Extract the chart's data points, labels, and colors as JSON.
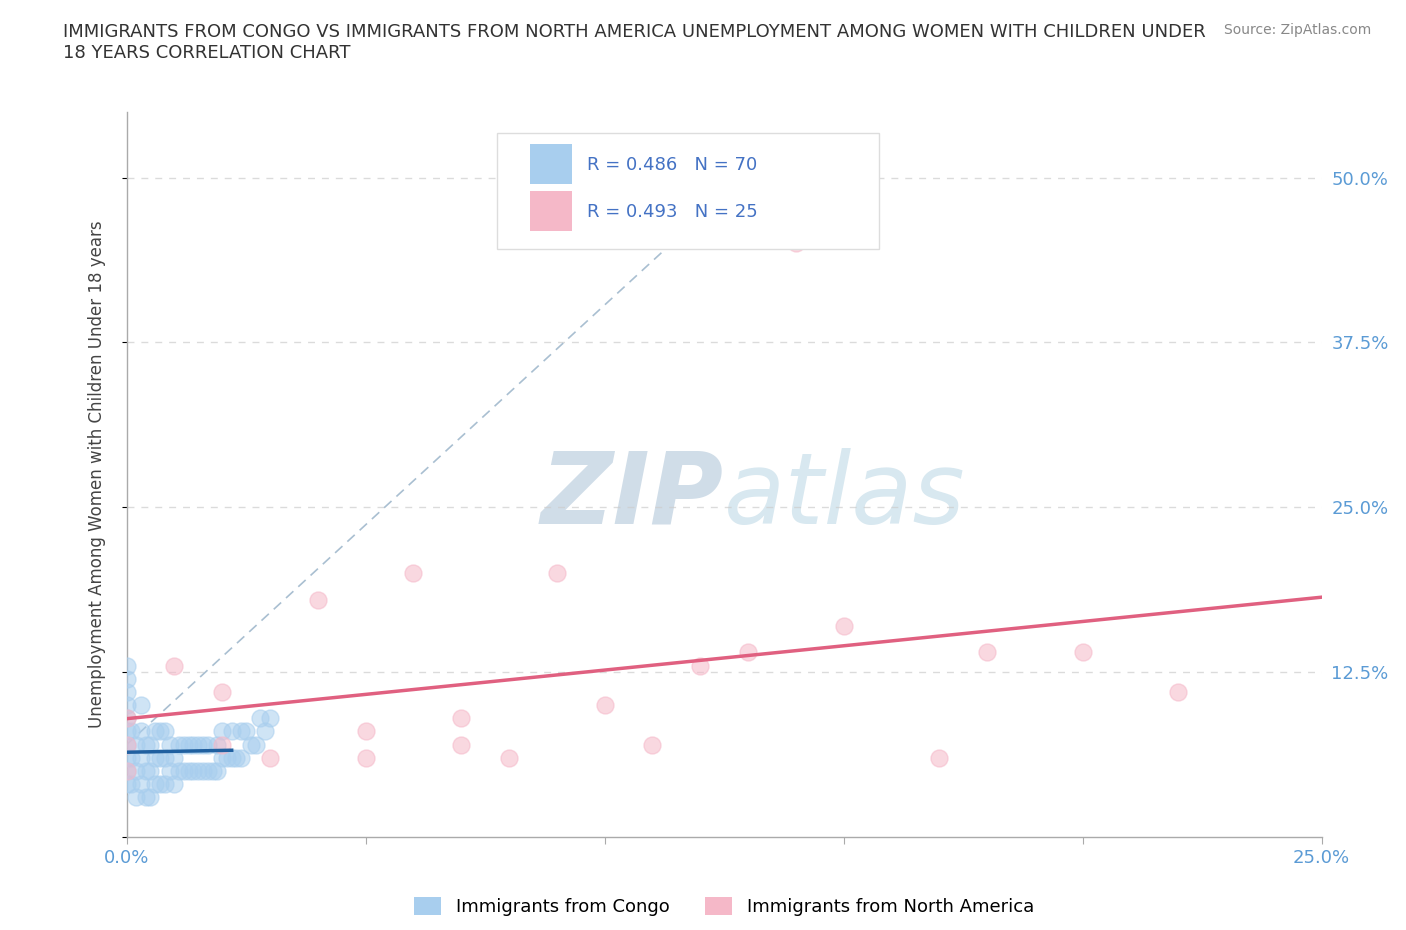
{
  "title": "IMMIGRANTS FROM CONGO VS IMMIGRANTS FROM NORTH AMERICA UNEMPLOYMENT AMONG WOMEN WITH CHILDREN UNDER\n18 YEARS CORRELATION CHART",
  "source": "Source: ZipAtlas.com",
  "ylabel_label": "Unemployment Among Women with Children Under 18 years",
  "legend_label1": "Immigrants from Congo",
  "legend_label2": "Immigrants from North America",
  "R1": 0.486,
  "N1": 70,
  "R2": 0.493,
  "N2": 25,
  "xlim": [
    0.0,
    0.25
  ],
  "ylim": [
    0.0,
    0.55
  ],
  "color_congo": "#A8CEEE",
  "color_north_america": "#F5B8C8",
  "color_congo_line": "#2060A0",
  "color_north_america_line": "#E06080",
  "color_grid": "#CCCCCC",
  "color_axis": "#AAAAAA",
  "watermark_color": "#D5E5F0",
  "congo_x": [
    0.0,
    0.0,
    0.0,
    0.0,
    0.0,
    0.0,
    0.0,
    0.0,
    0.0,
    0.0,
    0.001,
    0.001,
    0.001,
    0.002,
    0.002,
    0.002,
    0.003,
    0.003,
    0.003,
    0.003,
    0.004,
    0.004,
    0.004,
    0.005,
    0.005,
    0.005,
    0.006,
    0.006,
    0.006,
    0.007,
    0.007,
    0.007,
    0.008,
    0.008,
    0.008,
    0.009,
    0.009,
    0.01,
    0.01,
    0.011,
    0.011,
    0.012,
    0.012,
    0.013,
    0.013,
    0.014,
    0.014,
    0.015,
    0.015,
    0.016,
    0.016,
    0.017,
    0.017,
    0.018,
    0.019,
    0.019,
    0.02,
    0.02,
    0.021,
    0.022,
    0.022,
    0.023,
    0.024,
    0.024,
    0.025,
    0.026,
    0.027,
    0.028,
    0.029,
    0.03
  ],
  "congo_y": [
    0.04,
    0.05,
    0.06,
    0.07,
    0.08,
    0.09,
    0.1,
    0.11,
    0.12,
    0.13,
    0.04,
    0.06,
    0.08,
    0.03,
    0.05,
    0.07,
    0.04,
    0.06,
    0.08,
    0.1,
    0.03,
    0.05,
    0.07,
    0.03,
    0.05,
    0.07,
    0.04,
    0.06,
    0.08,
    0.04,
    0.06,
    0.08,
    0.04,
    0.06,
    0.08,
    0.05,
    0.07,
    0.04,
    0.06,
    0.05,
    0.07,
    0.05,
    0.07,
    0.05,
    0.07,
    0.05,
    0.07,
    0.05,
    0.07,
    0.05,
    0.07,
    0.05,
    0.07,
    0.05,
    0.05,
    0.07,
    0.06,
    0.08,
    0.06,
    0.06,
    0.08,
    0.06,
    0.08,
    0.06,
    0.08,
    0.07,
    0.07,
    0.09,
    0.08,
    0.09
  ],
  "na_x": [
    0.0,
    0.0,
    0.0,
    0.01,
    0.02,
    0.02,
    0.03,
    0.04,
    0.05,
    0.05,
    0.06,
    0.07,
    0.07,
    0.08,
    0.09,
    0.1,
    0.11,
    0.12,
    0.13,
    0.14,
    0.15,
    0.17,
    0.18,
    0.2,
    0.22
  ],
  "na_y": [
    0.05,
    0.07,
    0.09,
    0.13,
    0.11,
    0.07,
    0.06,
    0.18,
    0.06,
    0.08,
    0.2,
    0.09,
    0.07,
    0.06,
    0.2,
    0.1,
    0.07,
    0.13,
    0.14,
    0.45,
    0.16,
    0.06,
    0.14,
    0.14,
    0.11
  ]
}
